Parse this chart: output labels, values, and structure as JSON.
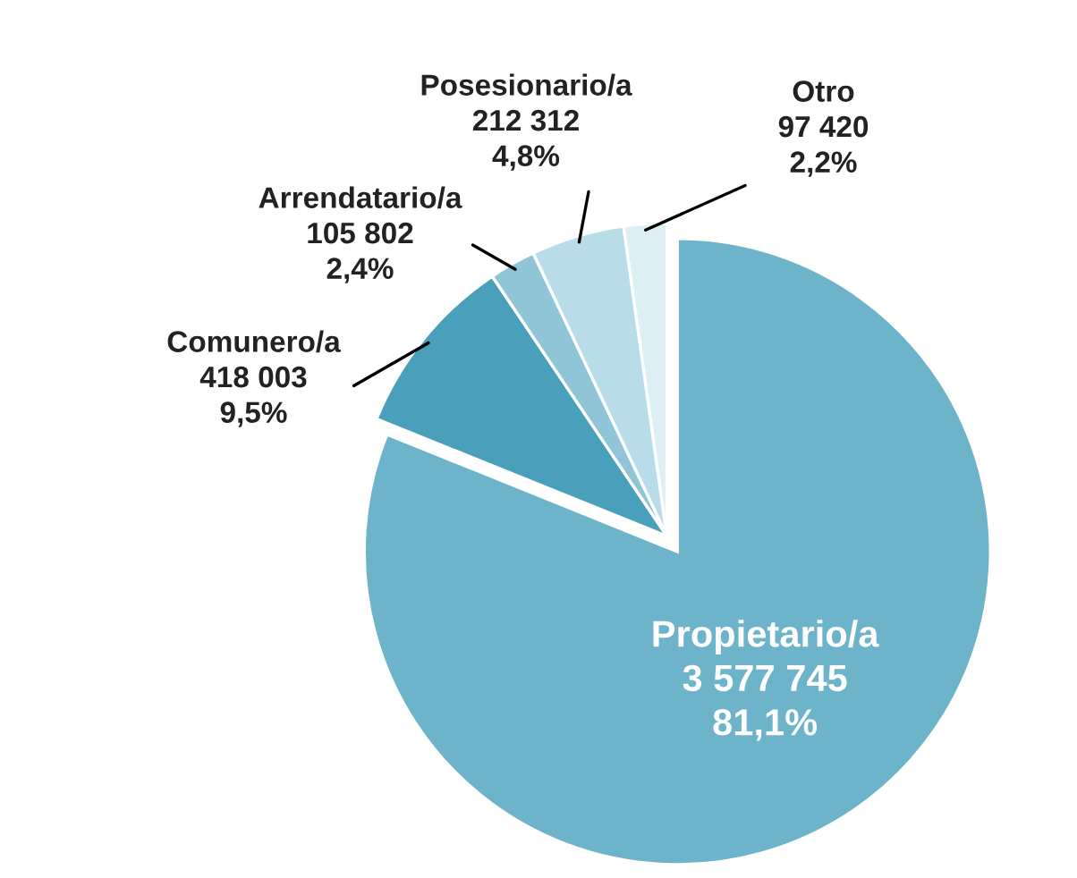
{
  "chart_data": {
    "type": "pie",
    "categories": [
      "Propietario/a",
      "Comunero/a",
      "Arrendatario/a",
      "Posesionario/a",
      "Otro"
    ],
    "values": [
      3577745,
      418003,
      105802,
      212312,
      97420
    ],
    "value_labels": [
      "3 577 745\n81,1%",
      "418 003\n9,5%",
      "105 802\n2,4%",
      "212 312\n4,8%",
      "97 420\n2,2%"
    ],
    "colors": [
      "#6db4cb",
      "#4a9fbb",
      "#8fc5d6",
      "#b8dce8",
      "#ddeff5"
    ],
    "legend": false
  }
}
